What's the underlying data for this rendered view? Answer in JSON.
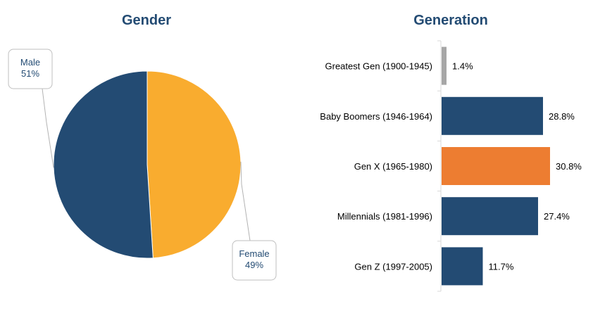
{
  "chart_data": [
    {
      "type": "pie",
      "title": "Gender",
      "slices": [
        {
          "label": "Female",
          "value": 49,
          "value_label": "49%",
          "color": "#f9ac2f"
        },
        {
          "label": "Male",
          "value": 51,
          "value_label": "51%",
          "color": "#234b73"
        }
      ],
      "legend": "none",
      "data_labels": "callouts"
    },
    {
      "type": "bar",
      "orientation": "horizontal",
      "title": "Generation",
      "categories": [
        "Greatest Gen (1900-1945)",
        "Baby Boomers (1946-1964)",
        "Gen X (1965-1980)",
        "Millennials (1981-1996)",
        "Gen Z (1997-2005)"
      ],
      "values": [
        1.4,
        28.8,
        30.8,
        27.4,
        11.7
      ],
      "value_labels": [
        "1.4%",
        "28.8%",
        "30.8%",
        "27.4%",
        "11.7%"
      ],
      "colors": [
        "#a6a6a6",
        "#234b73",
        "#ed7d31",
        "#234b73",
        "#234b73"
      ],
      "xlim": [
        0,
        100
      ],
      "grid": false
    }
  ]
}
